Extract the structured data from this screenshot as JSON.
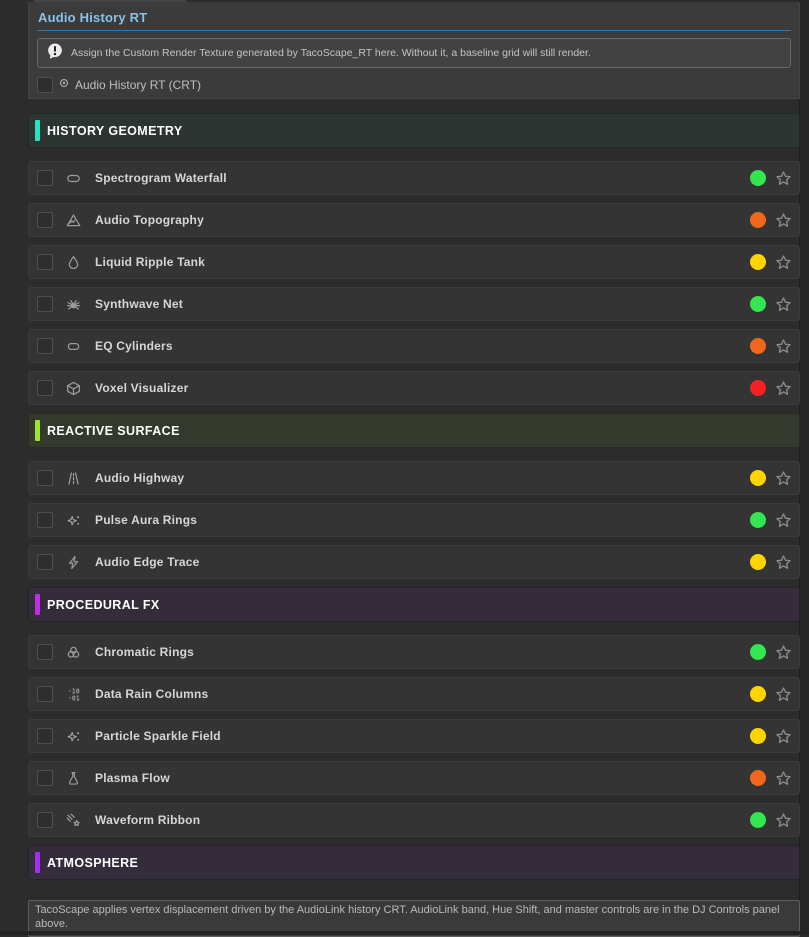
{
  "panel": {
    "title": "Audio History RT",
    "info_text": "Assign the Custom Render Texture generated by TacoScape_RT here. Without it, a baseline grid will still render.",
    "crt_field": {
      "label": "Audio History RT (CRT)",
      "checked": false
    }
  },
  "icons": {
    "info": "alert-bubble-icon",
    "object_picker": "target-icon",
    "favorite": "star-icon"
  },
  "colors": {
    "title": "#8ac2ea",
    "title_rule": "#2e7cb5",
    "status_green": "#33e650",
    "status_yellow": "#ffd400",
    "status_orange": "#f0671c",
    "status_red": "#f52222"
  },
  "sections": [
    {
      "label": "HISTORY GEOMETRY",
      "accent": "#27e3bd",
      "bg": "#2d3532",
      "items": [
        {
          "label": "Spectrogram Waterfall",
          "icon": "pill-icon",
          "status_color": "#33e650"
        },
        {
          "label": "Audio Topography",
          "icon": "mountain-icon",
          "status_color": "#f0671c"
        },
        {
          "label": "Liquid Ripple Tank",
          "icon": "droplet-icon",
          "status_color": "#ffd400"
        },
        {
          "label": "Synthwave Net",
          "icon": "bug-icon",
          "status_color": "#33e650"
        },
        {
          "label": "EQ Cylinders",
          "icon": "capsule-icon",
          "status_color": "#f0671c"
        },
        {
          "label": "Voxel Visualizer",
          "icon": "cube-icon",
          "status_color": "#f52222"
        }
      ]
    },
    {
      "label": "REACTIVE SURFACE",
      "accent": "#9fe32b",
      "bg": "#333a2d",
      "items": [
        {
          "label": "Audio Highway",
          "icon": "road-icon",
          "status_color": "#ffd400"
        },
        {
          "label": "Pulse Aura Rings",
          "icon": "sparkles-icon",
          "status_color": "#33e650"
        },
        {
          "label": "Audio Edge Trace",
          "icon": "lightning-icon",
          "status_color": "#ffd400"
        }
      ]
    },
    {
      "label": "PROCEDURAL FX",
      "accent": "#c02ee8",
      "bg": "#352c3a",
      "items": [
        {
          "label": "Chromatic Rings",
          "icon": "rings-icon",
          "status_color": "#33e650"
        },
        {
          "label": "Data Rain Columns",
          "icon": "binary-icon",
          "status_color": "#ffd400"
        },
        {
          "label": "Particle Sparkle Field",
          "icon": "sparkles-icon",
          "status_color": "#ffd400"
        },
        {
          "label": "Plasma Flow",
          "icon": "flask-icon",
          "status_color": "#f0671c"
        },
        {
          "label": "Waveform Ribbon",
          "icon": "shooting-star-icon",
          "status_color": "#33e650"
        }
      ]
    },
    {
      "label": "ATMOSPHERE",
      "accent": "#a62cf0",
      "bg": "#342c3a",
      "items": []
    }
  ],
  "footer_note": "TacoScape applies vertex displacement driven by the AudioLink history CRT. AudioLink band, Hue Shift, and master controls are in the DJ Controls panel above."
}
